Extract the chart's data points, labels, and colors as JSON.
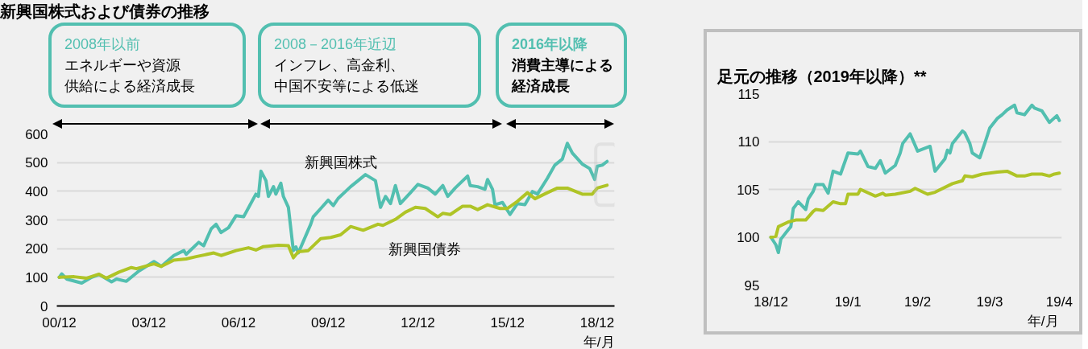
{
  "chart_data": [
    {
      "type": "line",
      "title": "新興国株式および債券の推移",
      "xlabel": "年/月",
      "xlim": [
        "2000-11",
        "2019-07"
      ],
      "xticks": [
        {
          "value": "2000-12",
          "label": "00/12"
        },
        {
          "value": "2003-12",
          "label": "03/12"
        },
        {
          "value": "2006-12",
          "label": "06/12"
        },
        {
          "value": "2009-12",
          "label": "09/12"
        },
        {
          "value": "2012-12",
          "label": "12/12"
        },
        {
          "value": "2015-12",
          "label": "15/12"
        },
        {
          "value": "2018-12",
          "label": "18/12"
        }
      ],
      "ylim": [
        0,
        600
      ],
      "yticks": [
        0,
        100,
        200,
        300,
        400,
        500,
        600
      ],
      "grid": "y",
      "series": [
        {
          "name": "新興国株式",
          "color": "#52bfb0",
          "x": [
            "2000-12",
            "2001-01",
            "2001-03",
            "2001-09",
            "2002-01",
            "2002-04",
            "2002-09",
            "2002-11",
            "2003-03",
            "2003-08",
            "2004-02",
            "2004-05",
            "2004-10",
            "2005-02",
            "2005-03",
            "2005-08",
            "2005-10",
            "2006-01",
            "2006-03",
            "2006-05",
            "2006-08",
            "2006-11",
            "2007-02",
            "2007-07",
            "2007-08",
            "2007-09",
            "2007-11",
            "2007-12",
            "2008-02",
            "2008-03",
            "2008-05",
            "2008-06",
            "2008-08",
            "2008-10",
            "2008-11",
            "2008-12",
            "2009-05",
            "2009-06",
            "2009-09",
            "2009-12",
            "2010-02",
            "2010-04",
            "2010-09",
            "2010-12",
            "2011-03",
            "2011-07",
            "2011-09",
            "2011-11",
            "2012-01",
            "2012-03",
            "2012-05",
            "2012-09",
            "2012-12",
            "2013-04",
            "2013-07",
            "2013-10",
            "2013-12",
            "2014-03",
            "2014-08",
            "2014-09",
            "2014-12",
            "2015-03",
            "2015-04",
            "2015-06",
            "2015-07",
            "2015-10",
            "2016-01",
            "2016-04",
            "2016-07",
            "2016-10",
            "2016-12",
            "2017-04",
            "2017-07",
            "2017-10",
            "2017-12",
            "2018-02",
            "2018-06",
            "2018-09",
            "2018-11",
            "2018-12",
            "2019-02",
            "2019-04"
          ],
          "values": [
            100,
            112,
            94,
            80,
            100,
            110,
            84,
            94,
            86,
            122,
            155,
            138,
            176,
            193,
            180,
            222,
            210,
            269,
            285,
            256,
            273,
            315,
            311,
            390,
            382,
            470,
            437,
            382,
            416,
            390,
            428,
            382,
            344,
            193,
            206,
            185,
            285,
            311,
            340,
            369,
            350,
            375,
            416,
            437,
            458,
            437,
            344,
            382,
            357,
            420,
            357,
            395,
            424,
            411,
            390,
            420,
            382,
            411,
            453,
            420,
            416,
            407,
            441,
            407,
            353,
            361,
            319,
            357,
            353,
            399,
            390,
            445,
            491,
            512,
            567,
            533,
            495,
            479,
            441,
            487,
            491,
            504
          ]
        },
        {
          "name": "新興国債券",
          "color": "#afc426",
          "x": [
            "2000-12",
            "2001-06",
            "2001-11",
            "2002-04",
            "2002-07",
            "2002-12",
            "2003-05",
            "2003-07",
            "2004-02",
            "2004-05",
            "2004-10",
            "2005-03",
            "2005-07",
            "2006-02",
            "2006-05",
            "2006-11",
            "2007-04",
            "2007-07",
            "2007-10",
            "2008-04",
            "2008-08",
            "2008-10",
            "2008-12",
            "2009-04",
            "2009-09",
            "2010-01",
            "2010-05",
            "2010-09",
            "2011-02",
            "2011-08",
            "2011-10",
            "2012-03",
            "2012-07",
            "2012-11",
            "2013-03",
            "2013-08",
            "2013-10",
            "2014-01",
            "2014-06",
            "2014-09",
            "2014-12",
            "2015-04",
            "2015-09",
            "2015-12",
            "2016-04",
            "2016-08",
            "2016-11",
            "2017-04",
            "2017-08",
            "2017-12",
            "2018-06",
            "2018-10",
            "2018-12",
            "2019-04"
          ],
          "values": [
            100,
            102,
            97,
            111,
            97,
            118,
            134,
            130,
            147,
            138,
            160,
            164,
            172,
            185,
            176,
            193,
            203,
            195,
            207,
            212,
            210,
            168,
            189,
            193,
            235,
            239,
            248,
            277,
            264,
            285,
            281,
            302,
            327,
            344,
            340,
            311,
            323,
            319,
            348,
            348,
            336,
            353,
            340,
            340,
            365,
            395,
            374,
            395,
            411,
            411,
            390,
            390,
            411,
            421
          ]
        }
      ],
      "annotations": [
        "2008年以前",
        "エネルギーや資源",
        "供給による経済成長",
        "2008－2016年近辺",
        "インフレ、高金利、",
        "中国不安等による低迷",
        "2016年以降",
        "消費主導による",
        "経済成長"
      ]
    },
    {
      "type": "line",
      "title": "足元の推移（2019年以降）**",
      "xlabel": "年/月",
      "xlim": [
        "2018-12-30",
        "2019-04-27"
      ],
      "xticks": [
        {
          "value": "2018-12-31",
          "label": "18/12"
        },
        {
          "value": "2019-01-31",
          "label": "19/1"
        },
        {
          "value": "2019-02-28",
          "label": "19/2"
        },
        {
          "value": "2019-03-29",
          "label": "19/3"
        },
        {
          "value": "2019-04-26",
          "label": "19/4"
        }
      ],
      "ylim": [
        95,
        115
      ],
      "yticks": [
        95,
        100,
        105,
        110,
        115
      ],
      "grid": "y",
      "series": [
        {
          "color": "#52bfb0",
          "x": [
            "2018-12-31",
            "2019-01-02",
            "2019-01-03",
            "2019-01-04",
            "2019-01-07",
            "2019-01-08",
            "2019-01-09",
            "2019-01-11",
            "2019-01-14",
            "2019-01-15",
            "2019-01-17",
            "2019-01-18",
            "2019-01-21",
            "2019-01-23",
            "2019-01-25",
            "2019-01-28",
            "2019-01-31",
            "2019-02-04",
            "2019-02-05",
            "2019-02-08",
            "2019-02-11",
            "2019-02-13",
            "2019-02-15",
            "2019-02-19",
            "2019-02-21",
            "2019-02-22",
            "2019-02-25",
            "2019-02-28",
            "2019-03-05",
            "2019-03-07",
            "2019-03-11",
            "2019-03-12",
            "2019-03-13",
            "2019-03-14",
            "2019-03-18",
            "2019-03-19",
            "2019-03-21",
            "2019-03-22",
            "2019-03-25",
            "2019-03-27",
            "2019-03-29",
            "2019-04-01",
            "2019-04-03",
            "2019-04-05",
            "2019-04-08",
            "2019-04-09",
            "2019-04-12",
            "2019-04-15",
            "2019-04-16",
            "2019-04-19",
            "2019-04-22",
            "2019-04-25",
            "2019-04-26"
          ],
          "values": [
            100.0,
            99.2,
            98.4,
            99.8,
            100.8,
            101.1,
            103.0,
            103.7,
            102.9,
            104.0,
            104.8,
            105.5,
            105.5,
            104.6,
            106.9,
            106.6,
            108.8,
            108.7,
            109.0,
            107.4,
            107.2,
            108.0,
            106.7,
            107.5,
            108.8,
            109.8,
            110.8,
            109.0,
            109.5,
            106.9,
            108.2,
            109.1,
            108.8,
            109.8,
            111.1,
            110.9,
            109.8,
            108.8,
            108.3,
            109.8,
            111.4,
            112.4,
            112.8,
            113.3,
            113.8,
            113.0,
            112.8,
            113.8,
            113.5,
            113.2,
            112.0,
            112.7,
            112.2
          ]
        },
        {
          "color": "#afc426",
          "x": [
            "2018-12-31",
            "2019-01-02",
            "2019-01-03",
            "2019-01-07",
            "2019-01-10",
            "2019-01-14",
            "2019-01-17",
            "2019-01-18",
            "2019-01-21",
            "2019-01-25",
            "2019-01-28",
            "2019-01-30",
            "2019-01-31",
            "2019-02-04",
            "2019-02-05",
            "2019-02-11",
            "2019-02-14",
            "2019-02-15",
            "2019-02-19",
            "2019-02-25",
            "2019-02-27",
            "2019-03-04",
            "2019-03-07",
            "2019-03-14",
            "2019-03-18",
            "2019-03-19",
            "2019-03-22",
            "2019-03-26",
            "2019-04-01",
            "2019-04-05",
            "2019-04-09",
            "2019-04-12",
            "2019-04-15",
            "2019-04-19",
            "2019-04-22",
            "2019-04-24",
            "2019-04-26"
          ],
          "values": [
            100.0,
            100.1,
            101.1,
            101.6,
            101.8,
            101.8,
            102.7,
            102.9,
            102.8,
            103.7,
            103.5,
            103.5,
            104.5,
            104.5,
            105.0,
            104.3,
            104.6,
            104.4,
            104.5,
            104.8,
            105.1,
            104.5,
            104.7,
            105.6,
            105.9,
            106.4,
            106.3,
            106.6,
            106.8,
            106.9,
            106.4,
            106.4,
            106.6,
            106.6,
            106.4,
            106.6,
            106.7
          ]
        }
      ]
    }
  ]
}
